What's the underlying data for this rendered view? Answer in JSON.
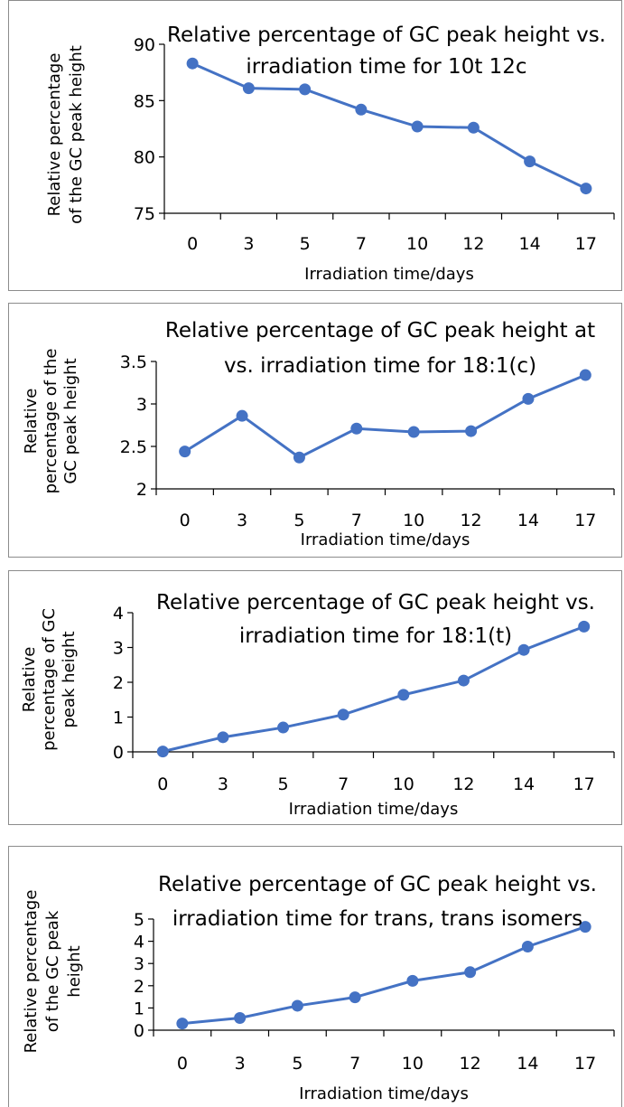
{
  "chart_data": [
    {
      "type": "line",
      "title_lines": [
        "Relative percentage of GC peak height vs.",
        "irradiation time for 10t 12c"
      ],
      "ylabel_lines": [
        "Relative percentage",
        "of the  GC peak height"
      ],
      "xlabel": "Irradiation time/days",
      "categories": [
        "0",
        "3",
        "5",
        "7",
        "10",
        "12",
        "14",
        "17"
      ],
      "values": [
        88.3,
        86.1,
        86.0,
        84.2,
        82.7,
        82.6,
        79.6,
        77.2
      ],
      "yticks": [
        "75",
        "80",
        "85",
        "90"
      ],
      "ylim": [
        75,
        90
      ],
      "grid": false,
      "color": "#4472c4"
    },
    {
      "type": "line",
      "title_lines": [
        "Relative percentage of GC peak height at",
        "vs. irradiation time for 18:1(c)"
      ],
      "ylabel_lines": [
        "Relative",
        "percentage of the",
        "GC peak height"
      ],
      "xlabel": "Irradiation time/days",
      "categories": [
        "0",
        "3",
        "5",
        "7",
        "10",
        "12",
        "14",
        "17"
      ],
      "values": [
        2.44,
        2.86,
        2.37,
        2.71,
        2.67,
        2.68,
        3.06,
        3.34
      ],
      "yticks": [
        "2",
        "2.5",
        "3",
        "3.5"
      ],
      "ylim": [
        2,
        3.5
      ],
      "grid": false,
      "color": "#4472c4"
    },
    {
      "type": "line",
      "title_lines": [
        "Relative percentage of GC peak height vs.",
        "irradiation time for 18:1(t)"
      ],
      "ylabel_lines": [
        "Relative",
        "percentage of GC",
        "peak height"
      ],
      "xlabel": "Irradiation time/days",
      "categories": [
        "0",
        "3",
        "5",
        "7",
        "10",
        "12",
        "14",
        "17"
      ],
      "values": [
        0.01,
        0.42,
        0.7,
        1.07,
        1.64,
        2.05,
        2.93,
        3.6
      ],
      "yticks": [
        "0",
        "1",
        "2",
        "3",
        "4"
      ],
      "ylim": [
        0,
        4
      ],
      "grid": false,
      "color": "#4472c4"
    },
    {
      "type": "line",
      "title_lines": [
        "Relative percentage of GC peak height vs.",
        "irradiation time for trans, trans isomers"
      ],
      "ylabel_lines": [
        "Relative percentage",
        "of  the GC  peak",
        "height"
      ],
      "xlabel": "Irradiation time/days",
      "categories": [
        "0",
        "3",
        "5",
        "7",
        "10",
        "12",
        "14",
        "17"
      ],
      "values": [
        0.3,
        0.55,
        1.1,
        1.48,
        2.22,
        2.61,
        3.76,
        4.65
      ],
      "yticks": [
        "0",
        "1",
        "2",
        "3",
        "4",
        "5"
      ],
      "ylim": [
        0,
        5
      ],
      "grid": false,
      "color": "#4472c4"
    }
  ]
}
